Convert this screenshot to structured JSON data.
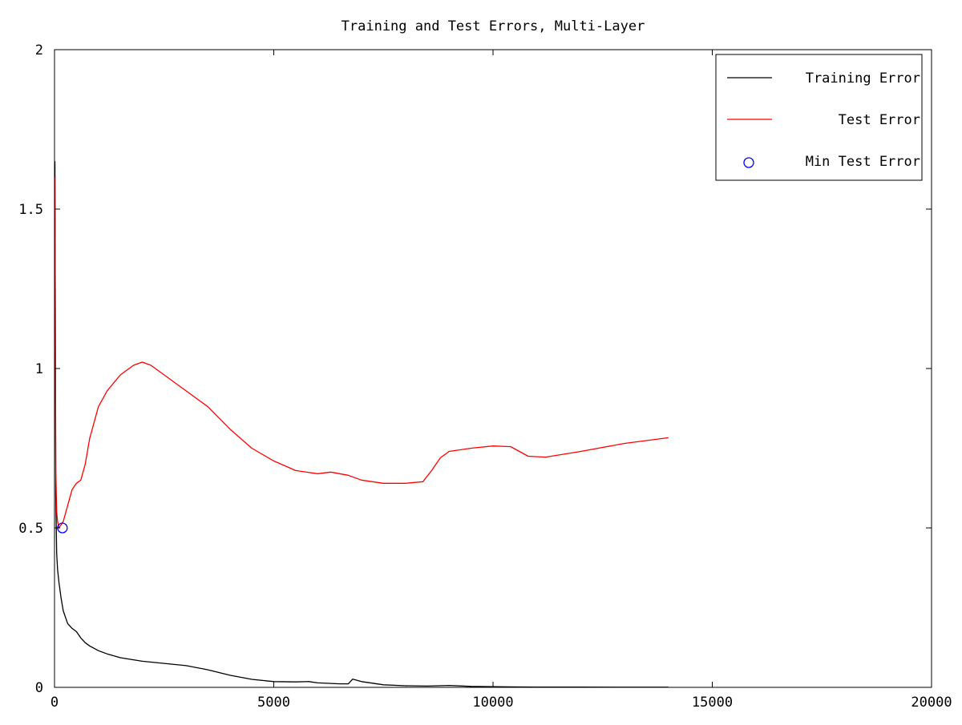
{
  "chart_data": {
    "type": "line",
    "title": "Training and Test Errors, Multi-Layer",
    "xlabel": "",
    "ylabel": "",
    "xlim": [
      0,
      20000
    ],
    "ylim": [
      0,
      2
    ],
    "x_ticks": [
      0,
      5000,
      10000,
      15000,
      20000
    ],
    "x_tick_labels": [
      "0",
      "5000",
      "10000",
      "15000",
      "20000"
    ],
    "y_ticks": [
      0,
      0.5,
      1,
      1.5,
      2
    ],
    "y_tick_labels": [
      "0",
      "0.5",
      "1",
      "1.5",
      "2"
    ],
    "grid": false,
    "legend_position": "top-right",
    "series": [
      {
        "name": "Training Error",
        "color": "#000000",
        "style": "line",
        "x": [
          10,
          30,
          50,
          70,
          100,
          150,
          200,
          300,
          400,
          500,
          600,
          700,
          800,
          1000,
          1200,
          1500,
          2000,
          2500,
          3000,
          3500,
          4000,
          4500,
          5000,
          5500,
          5800,
          6000,
          6500,
          6700,
          6800,
          7000,
          7500,
          8000,
          8500,
          9000,
          9500,
          10000,
          11000,
          12000,
          13000,
          14000
        ],
        "y": [
          1.65,
          0.6,
          0.42,
          0.37,
          0.33,
          0.28,
          0.24,
          0.2,
          0.185,
          0.175,
          0.155,
          0.14,
          0.13,
          0.115,
          0.105,
          0.093,
          0.082,
          0.075,
          0.068,
          0.055,
          0.038,
          0.025,
          0.018,
          0.017,
          0.018,
          0.014,
          0.011,
          0.011,
          0.026,
          0.018,
          0.008,
          0.005,
          0.004,
          0.006,
          0.003,
          0.002,
          0.001,
          0.001,
          0.0005,
          0.0005
        ]
      },
      {
        "name": "Test Error",
        "color": "#ff0000",
        "style": "line",
        "x": [
          10,
          30,
          50,
          70,
          100,
          150,
          200,
          300,
          400,
          500,
          600,
          700,
          800,
          1000,
          1200,
          1500,
          1800,
          2000,
          2200,
          2500,
          3000,
          3500,
          4000,
          4500,
          5000,
          5500,
          6000,
          6300,
          6700,
          7000,
          7500,
          8000,
          8400,
          8600,
          8800,
          9000,
          9500,
          10000,
          10400,
          10800,
          11200,
          12000,
          13000,
          14000
        ],
        "y": [
          1.6,
          0.68,
          0.55,
          0.52,
          0.5,
          0.51,
          0.52,
          0.57,
          0.62,
          0.64,
          0.65,
          0.7,
          0.78,
          0.88,
          0.93,
          0.98,
          1.01,
          1.02,
          1.01,
          0.98,
          0.93,
          0.88,
          0.81,
          0.75,
          0.71,
          0.68,
          0.67,
          0.675,
          0.665,
          0.65,
          0.64,
          0.64,
          0.645,
          0.68,
          0.72,
          0.74,
          0.75,
          0.757,
          0.755,
          0.725,
          0.722,
          0.74,
          0.765,
          0.783
        ]
      },
      {
        "name": "Min Test Error",
        "color": "#0000ff",
        "style": "marker-circle",
        "x": [
          180
        ],
        "y": [
          0.5
        ]
      }
    ]
  }
}
